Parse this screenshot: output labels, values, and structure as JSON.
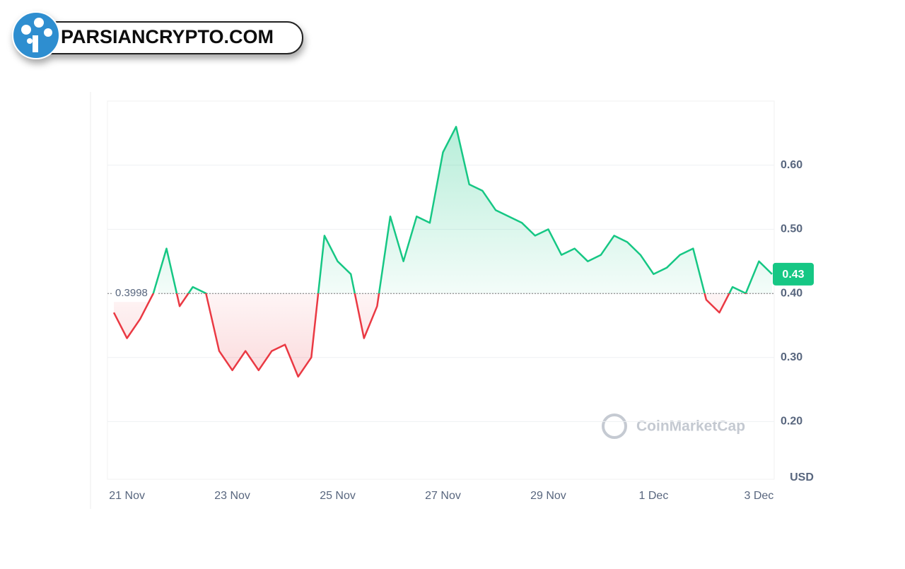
{
  "header": {
    "brand": "PARSIANCRYPTO.COM"
  },
  "chart_data": {
    "type": "line",
    "x": [
      "",
      "21 Nov",
      null,
      null,
      null,
      null,
      null,
      null,
      null,
      "23 Nov",
      null,
      null,
      null,
      null,
      null,
      null,
      null,
      "25 Nov",
      null,
      null,
      null,
      null,
      null,
      null,
      null,
      "27 Nov",
      null,
      null,
      null,
      null,
      null,
      null,
      null,
      "29 Nov",
      null,
      null,
      null,
      null,
      null,
      null,
      null,
      "1 Dec",
      null,
      null,
      null,
      null,
      null,
      null,
      null,
      "3 Dec",
      null
    ],
    "series": [
      {
        "color": "#16c784",
        "below_color": "#ea3943",
        "values": [
          0.37,
          0.33,
          0.36,
          0.4,
          0.47,
          0.38,
          0.41,
          0.4,
          0.31,
          0.28,
          0.31,
          0.28,
          0.31,
          0.32,
          0.27,
          0.3,
          0.49,
          0.45,
          0.43,
          0.33,
          0.38,
          0.52,
          0.45,
          0.52,
          0.51,
          0.62,
          0.66,
          0.57,
          0.56,
          0.53,
          0.52,
          0.51,
          0.49,
          0.5,
          0.46,
          0.47,
          0.45,
          0.46,
          0.49,
          0.48,
          0.46,
          0.43,
          0.44,
          0.46,
          0.47,
          0.39,
          0.37,
          0.41,
          0.4,
          0.45,
          0.43
        ]
      }
    ],
    "baseline": 0.3998,
    "ylim": [
      0.11,
      0.7
    ],
    "yticks": [
      {
        "value": 0.2,
        "label": "0.20"
      },
      {
        "value": 0.3,
        "label": "0.30"
      },
      {
        "value": 0.4,
        "label": "0.40"
      },
      {
        "value": 0.5,
        "label": "0.50"
      },
      {
        "value": 0.6,
        "label": "0.60"
      }
    ],
    "grid": true,
    "y_unit": "USD",
    "watermark": "CoinMarketCap"
  }
}
